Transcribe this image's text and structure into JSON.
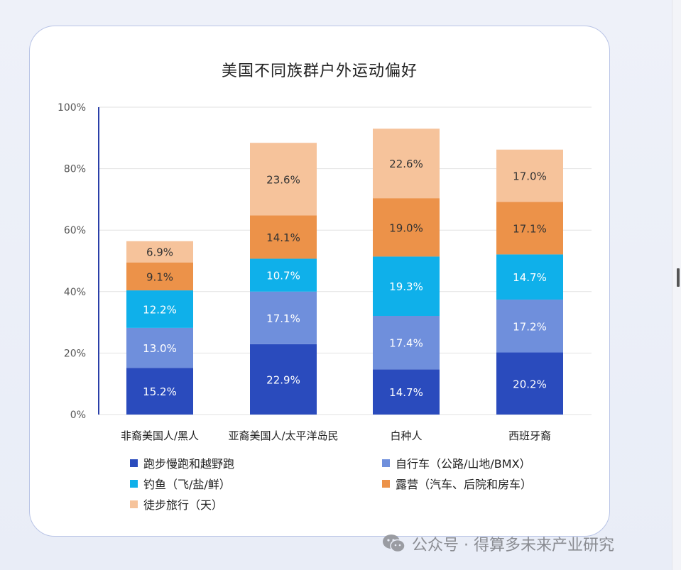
{
  "chart_data": {
    "type": "bar",
    "stacked": true,
    "title": "美国不同族群户外运动偏好",
    "categories": [
      "非裔美国人/黑人",
      "亚裔美国人/太平洋岛民",
      "白种人",
      "西班牙裔"
    ],
    "series": [
      {
        "name": "跑步慢跑和越野跑",
        "color": "#2a4bbd",
        "values": [
          15.2,
          22.9,
          14.7,
          20.2
        ],
        "labels": [
          "15.2%",
          "22.9%",
          "14.7%",
          "20.2%"
        ]
      },
      {
        "name": "自行车（公路/山地/BMX）",
        "color": "#6f8fdc",
        "values": [
          13.0,
          17.1,
          17.4,
          17.2
        ],
        "labels": [
          "13.0%",
          "17.1%",
          "17.4%",
          "17.2%"
        ]
      },
      {
        "name": "钓鱼（飞/盐/鲜）",
        "color": "#0fb0ea",
        "values": [
          12.2,
          10.7,
          19.3,
          14.7
        ],
        "labels": [
          "12.2%",
          "10.7%",
          "19.3%",
          "14.7%"
        ]
      },
      {
        "name": "露营（汽车、后院和房车）",
        "color": "#ec9249",
        "values": [
          9.1,
          14.1,
          19.0,
          17.1
        ],
        "labels": [
          "9.1%",
          "14.1%",
          "19.0%",
          "17.1%"
        ]
      },
      {
        "name": "徒步旅行（天）",
        "color": "#f6c39b",
        "values": [
          6.9,
          23.6,
          22.6,
          17.0
        ],
        "labels": [
          "6.9%",
          "23.6%",
          "22.6%",
          "17.0%"
        ]
      }
    ],
    "ylim": [
      0,
      100
    ],
    "yticks": [
      "0%",
      "20%",
      "40%",
      "60%",
      "80%",
      "100%"
    ],
    "grid": true,
    "legend_position": "bottom"
  },
  "watermark": {
    "text": "公众号 · 得算多未来产业研究",
    "icon": "wechat-icon"
  }
}
